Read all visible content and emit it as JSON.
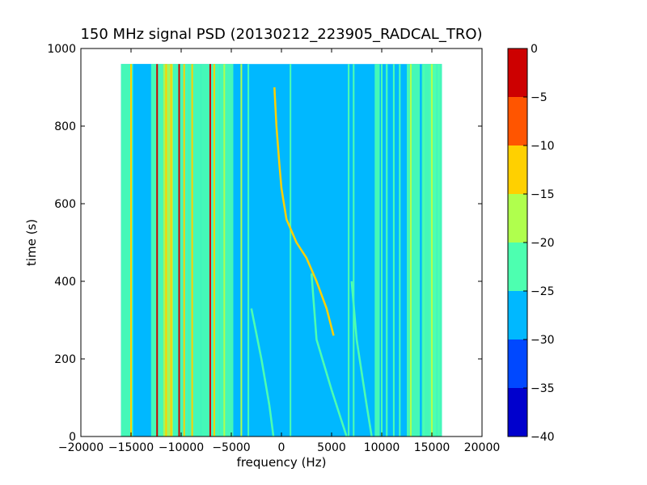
{
  "chart_data": {
    "type": "heatmap",
    "title": "150 MHz signal PSD (20130212_223905_RADCAL_TRO)",
    "xlabel": "frequency (Hz)",
    "ylabel": "time (s)",
    "xlim": [
      -20000,
      20000
    ],
    "ylim": [
      0,
      1000
    ],
    "x_ticks": [
      -20000,
      -15000,
      -10000,
      -5000,
      0,
      5000,
      10000,
      15000,
      20000
    ],
    "x_tick_labels": [
      "−20000",
      "−15000",
      "−10000",
      "−5000",
      "0",
      "5000",
      "10000",
      "15000",
      "20000"
    ],
    "y_ticks": [
      0,
      200,
      400,
      600,
      800,
      1000
    ],
    "y_tick_labels": [
      "0",
      "200",
      "400",
      "600",
      "800",
      "1000"
    ],
    "data_extent": {
      "x": [
        -16000,
        16000
      ],
      "y": [
        0,
        960
      ]
    },
    "background_level": -28,
    "grid": false,
    "colorbar": {
      "ticks": [
        0,
        -5,
        -10,
        -15,
        -20,
        -25,
        -30,
        -35,
        -40
      ],
      "tick_labels": [
        "0",
        "−5",
        "−10",
        "−15",
        "−20",
        "−25",
        "−30",
        "−35",
        "−40"
      ],
      "levels": [
        {
          "from": -40,
          "to": -35,
          "color": "#0000cd"
        },
        {
          "from": -35,
          "to": -30,
          "color": "#0048ff"
        },
        {
          "from": -30,
          "to": -25,
          "color": "#00b8ff"
        },
        {
          "from": -25,
          "to": -20,
          "color": "#4dffb0"
        },
        {
          "from": -20,
          "to": -15,
          "color": "#b0ff4d"
        },
        {
          "from": -15,
          "to": -10,
          "color": "#ffd000"
        },
        {
          "from": -10,
          "to": -5,
          "color": "#ff5500"
        },
        {
          "from": -5,
          "to": 0,
          "color": "#cd0000"
        }
      ]
    },
    "bands": [
      {
        "x0": -16000,
        "x1": -14800,
        "level": -23
      },
      {
        "x0": -14800,
        "x1": -13000,
        "level": -26
      },
      {
        "x0": -13000,
        "x1": -11800,
        "level": -21
      },
      {
        "x0": -11800,
        "x1": -10800,
        "level": -18
      },
      {
        "x0": -10800,
        "x1": -9200,
        "level": -22
      },
      {
        "x0": -9200,
        "x1": -8000,
        "level": -20
      },
      {
        "x0": -8000,
        "x1": -6200,
        "level": -21
      },
      {
        "x0": -6200,
        "x1": -4800,
        "level": -23
      },
      {
        "x0": -4800,
        "x1": -3300,
        "level": -25
      },
      {
        "x0": 9300,
        "x1": 9800,
        "level": -23
      },
      {
        "x0": 10400,
        "x1": 10600,
        "level": -23
      },
      {
        "x0": 12500,
        "x1": 13800,
        "level": -24
      },
      {
        "x0": 14000,
        "x1": 16000,
        "level": -22
      },
      {
        "x0": 14800,
        "x1": 15400,
        "level": -20
      }
    ],
    "lines": [
      {
        "x": -15000,
        "level": -13
      },
      {
        "x": -12400,
        "level": -3
      },
      {
        "x": -11500,
        "level": -12
      },
      {
        "x": -11000,
        "level": -14
      },
      {
        "x": -10200,
        "level": -3
      },
      {
        "x": -9700,
        "level": -10
      },
      {
        "x": -8900,
        "level": -12
      },
      {
        "x": -7100,
        "level": -2
      },
      {
        "x": -6700,
        "level": -13
      },
      {
        "x": -5700,
        "level": -16
      },
      {
        "x": -4000,
        "level": -17
      },
      {
        "x": -3300,
        "level": -22
      },
      {
        "x": 900,
        "level": -22
      },
      {
        "x": 6700,
        "level": -22
      },
      {
        "x": 7200,
        "level": -22
      },
      {
        "x": 10000,
        "level": -22
      },
      {
        "x": 11200,
        "level": -21
      },
      {
        "x": 11800,
        "level": -22
      },
      {
        "x": 12900,
        "level": -18
      },
      {
        "x": 14200,
        "level": -23
      },
      {
        "x": 15000,
        "level": -18
      },
      {
        "x": 15700,
        "level": -21
      }
    ],
    "traces": [
      {
        "name": "",
        "level": -13,
        "points": [
          [
            -700,
            900
          ],
          [
            -500,
            800
          ],
          [
            -200,
            700
          ],
          [
            0,
            640
          ],
          [
            500,
            560
          ],
          [
            1500,
            500
          ],
          [
            2500,
            460
          ],
          [
            3500,
            400
          ],
          [
            4500,
            330
          ],
          [
            5200,
            260
          ]
        ]
      },
      {
        "name": "",
        "level": -24,
        "points": [
          [
            3000,
            420
          ],
          [
            3500,
            250
          ],
          [
            5000,
            120
          ],
          [
            6500,
            0
          ]
        ]
      },
      {
        "name": "",
        "level": -24,
        "points": [
          [
            -3000,
            330
          ],
          [
            -2000,
            200
          ],
          [
            -1200,
            80
          ],
          [
            -800,
            0
          ]
        ]
      },
      {
        "name": "",
        "level": -24,
        "points": [
          [
            7000,
            400
          ],
          [
            7500,
            250
          ],
          [
            8500,
            80
          ],
          [
            9000,
            0
          ]
        ]
      }
    ]
  }
}
